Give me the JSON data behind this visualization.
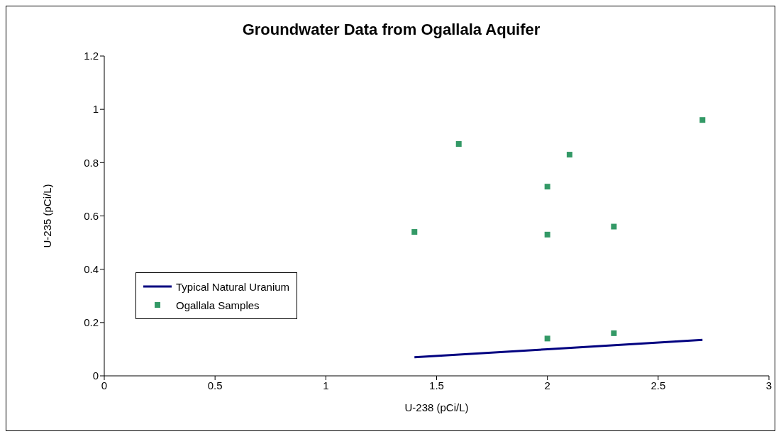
{
  "chart_data": {
    "type": "scatter",
    "title": "Groundwater Data from Ogallala Aquifer",
    "xlabel": "U-238 (pCi/L)",
    "ylabel": "U-235 (pCi/L)",
    "series": [
      {
        "name": "Typical Natural Uranium",
        "type": "line",
        "color": "#000080",
        "marker": "none",
        "x": [
          1.4,
          2.0,
          2.7
        ],
        "values": [
          0.07,
          0.1,
          0.135
        ]
      },
      {
        "name": "Ogallala Samples",
        "color": "#339966",
        "marker": "square",
        "x": [
          1.4,
          1.6,
          2.0,
          2.0,
          2.0,
          2.1,
          2.3,
          2.3,
          2.7
        ],
        "values": [
          0.54,
          0.87,
          0.71,
          0.53,
          0.14,
          0.83,
          0.56,
          0.16,
          0.96
        ]
      }
    ],
    "xlim": [
      0,
      3
    ],
    "xticks": [
      0,
      0.5,
      1,
      1.5,
      2,
      2.5,
      3
    ],
    "ylim": [
      0,
      1.2
    ],
    "yticks": [
      0,
      0.2,
      0.4,
      0.6,
      0.8,
      1,
      1.2
    ],
    "grid": false,
    "legend": "bottom left"
  }
}
